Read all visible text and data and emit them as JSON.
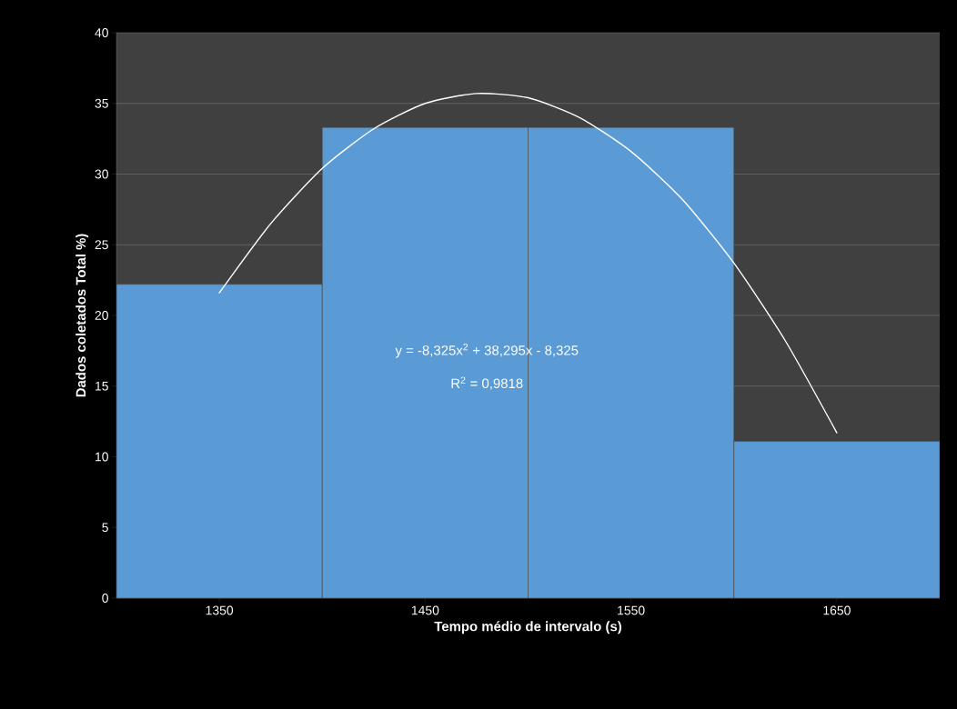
{
  "chart_data": {
    "type": "histogram",
    "xlabel": "Tempo médio de intervalo (s)",
    "ylabel": "Dados coletados Total  %)",
    "bins": [
      1300,
      1400,
      1500,
      1600,
      1700
    ],
    "values": [
      22.2,
      33.3,
      33.3,
      11.1
    ],
    "color": "#5b9bd5",
    "xlim": [
      1300,
      1700
    ],
    "ylim": [
      0,
      40
    ],
    "xticks": [
      1350,
      1450,
      1550,
      1650
    ],
    "yticks": [
      0,
      5,
      10,
      15,
      20,
      25,
      30,
      35,
      40
    ],
    "grid": "y",
    "series": [
      {
        "type": "line",
        "color": "#ffffff",
        "x": [
          1350,
          1375,
          1400,
          1425,
          1450,
          1475,
          1500,
          1525,
          1550,
          1575,
          1600,
          1625,
          1650
        ],
        "values": [
          21.6,
          26.5,
          30.4,
          33.2,
          35.0,
          35.7,
          35.4,
          34.0,
          31.6,
          28.2,
          23.7,
          18.2,
          11.7
        ]
      }
    ],
    "annotations": [
      "y = -8,325x$^{2}$ + 38,295x - 8,325",
      "R$^{2}$ = 0,9818"
    ]
  }
}
